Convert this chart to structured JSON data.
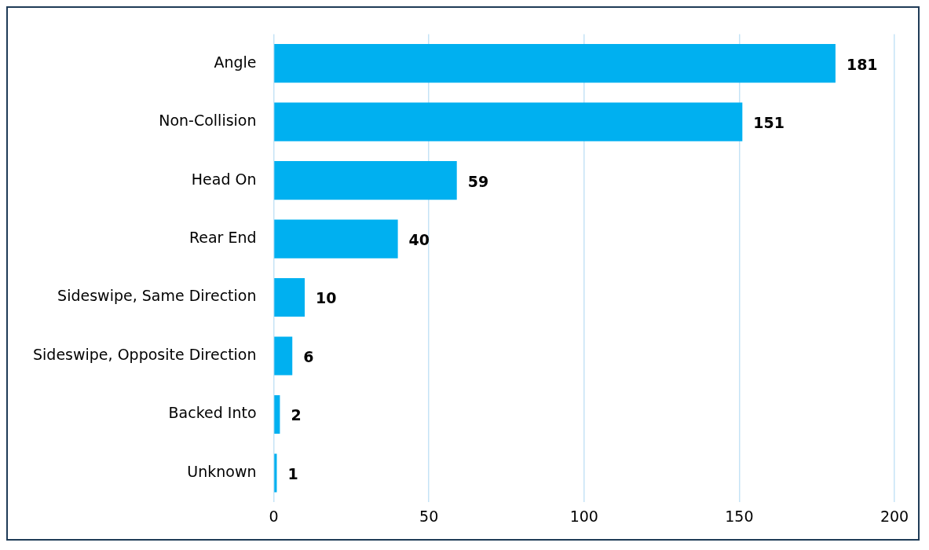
{
  "chart_data": {
    "type": "bar",
    "orientation": "horizontal",
    "categories": [
      "Angle",
      "Non-Collision",
      "Head On",
      "Rear End",
      "Sideswipe, Same Direction",
      "Sideswipe, Opposite Direction",
      "Backed Into",
      "Unknown"
    ],
    "values": [
      181,
      151,
      59,
      40,
      10,
      6,
      2,
      1
    ],
    "color": "#00b0f0",
    "xlim": [
      0,
      200
    ],
    "xticks": [
      0,
      50,
      100,
      150,
      200
    ],
    "grid": "x",
    "data_labels": true
  }
}
